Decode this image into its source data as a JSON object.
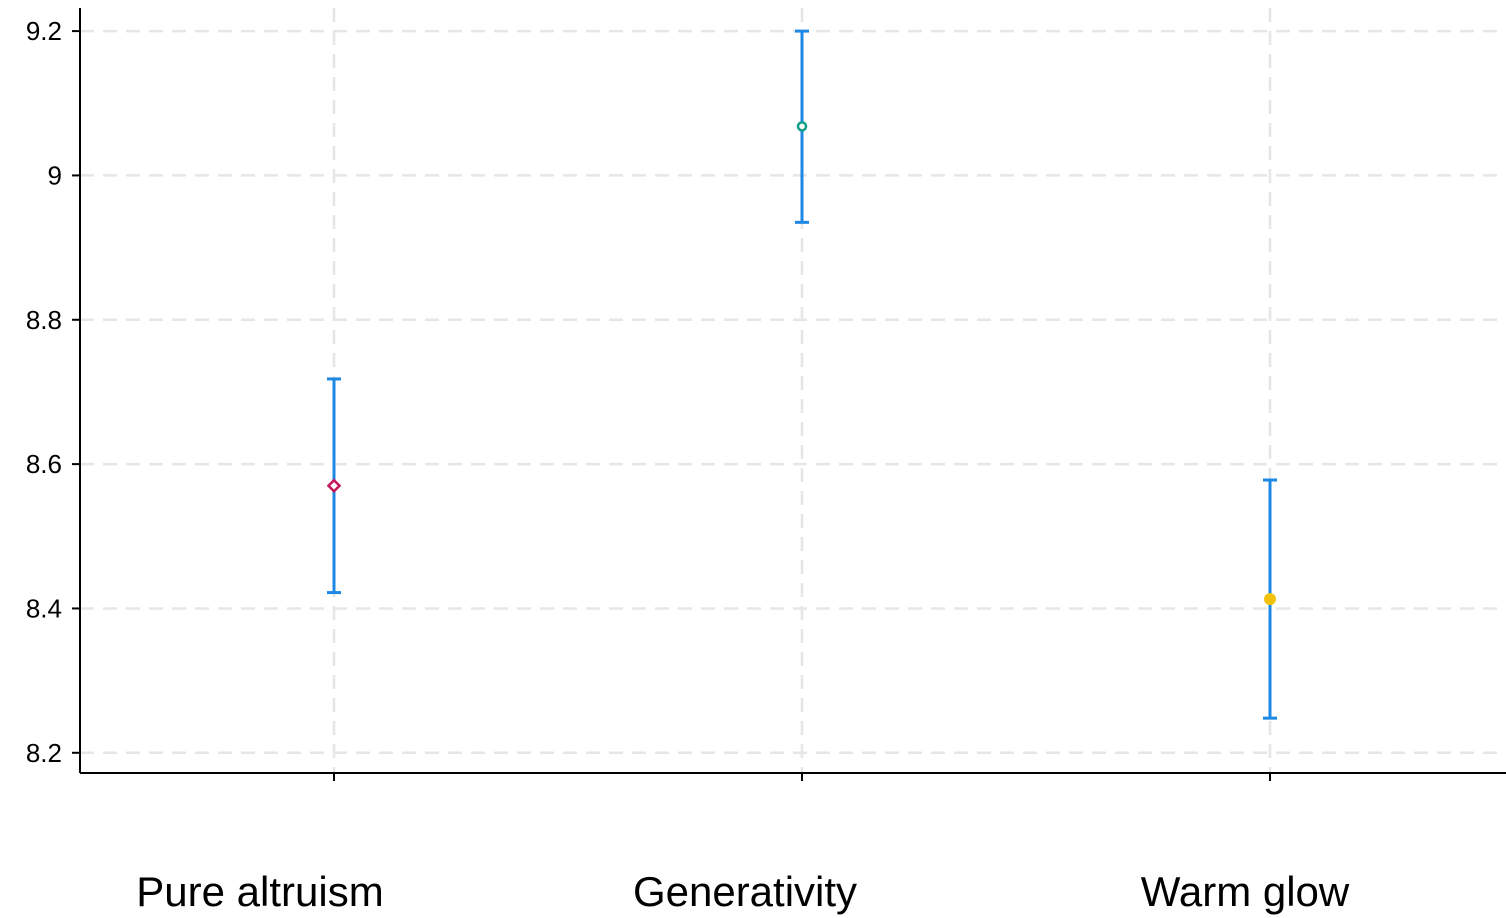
{
  "chart_data": {
    "type": "scatter",
    "categories": [
      "Pure altruism",
      "Generativity",
      "Warm glow"
    ],
    "values": [
      8.57,
      9.068,
      8.413
    ],
    "ci_low": [
      8.422,
      8.935,
      8.248
    ],
    "ci_high": [
      8.718,
      9.2,
      8.578
    ],
    "marker_shapes": [
      "diamond",
      "circle",
      "circle"
    ],
    "marker_colors": [
      "#c2185b",
      "#16a085",
      "#f4c20d"
    ],
    "error_bar_color": "#1e88e5",
    "ylim": [
      8.172,
      9.232
    ],
    "yticks": [
      "8.2",
      "8.4",
      "8.6",
      "8.8",
      "9",
      "9.2"
    ],
    "grid": true,
    "title": "",
    "xlabel": "",
    "ylabel": ""
  }
}
